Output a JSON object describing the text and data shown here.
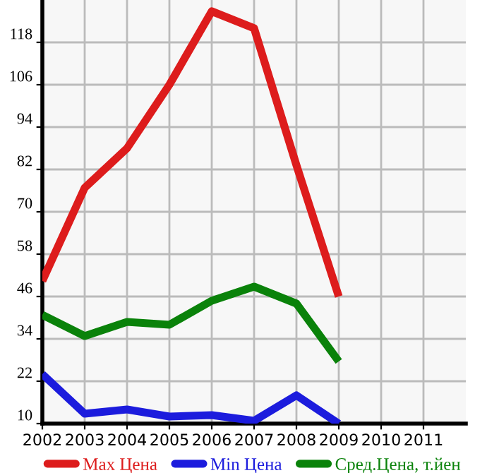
{
  "chart_data": {
    "type": "line",
    "x": [
      2002,
      2003,
      2004,
      2005,
      2006,
      2007,
      2008,
      2009
    ],
    "series": [
      {
        "name": "Max Цена",
        "color": "#dd1c1c",
        "values": [
          50.4,
          76.8,
          88,
          106,
          126.8,
          122,
          83.2,
          46
        ]
      },
      {
        "name": "Min Цена",
        "color": "#1c1cdd",
        "values": [
          24,
          12.8,
          14,
          12,
          12.4,
          10.8,
          18,
          10
        ]
      },
      {
        "name": "Сред.Цена, т.йен",
        "color": "#0a820a",
        "values": [
          40.8,
          34.8,
          38.8,
          38,
          44.8,
          48.8,
          44,
          27.6
        ]
      }
    ],
    "xlim": [
      2002,
      2012
    ],
    "xticks": [
      2002,
      2003,
      2004,
      2005,
      2006,
      2007,
      2008,
      2009,
      2010,
      2011
    ],
    "ylim": [
      10,
      130
    ],
    "yticks": [
      10,
      22,
      34,
      46,
      58,
      70,
      82,
      94,
      106,
      118
    ],
    "grid": true,
    "legend": "bottom",
    "marker": "none",
    "line_style": "solid"
  }
}
